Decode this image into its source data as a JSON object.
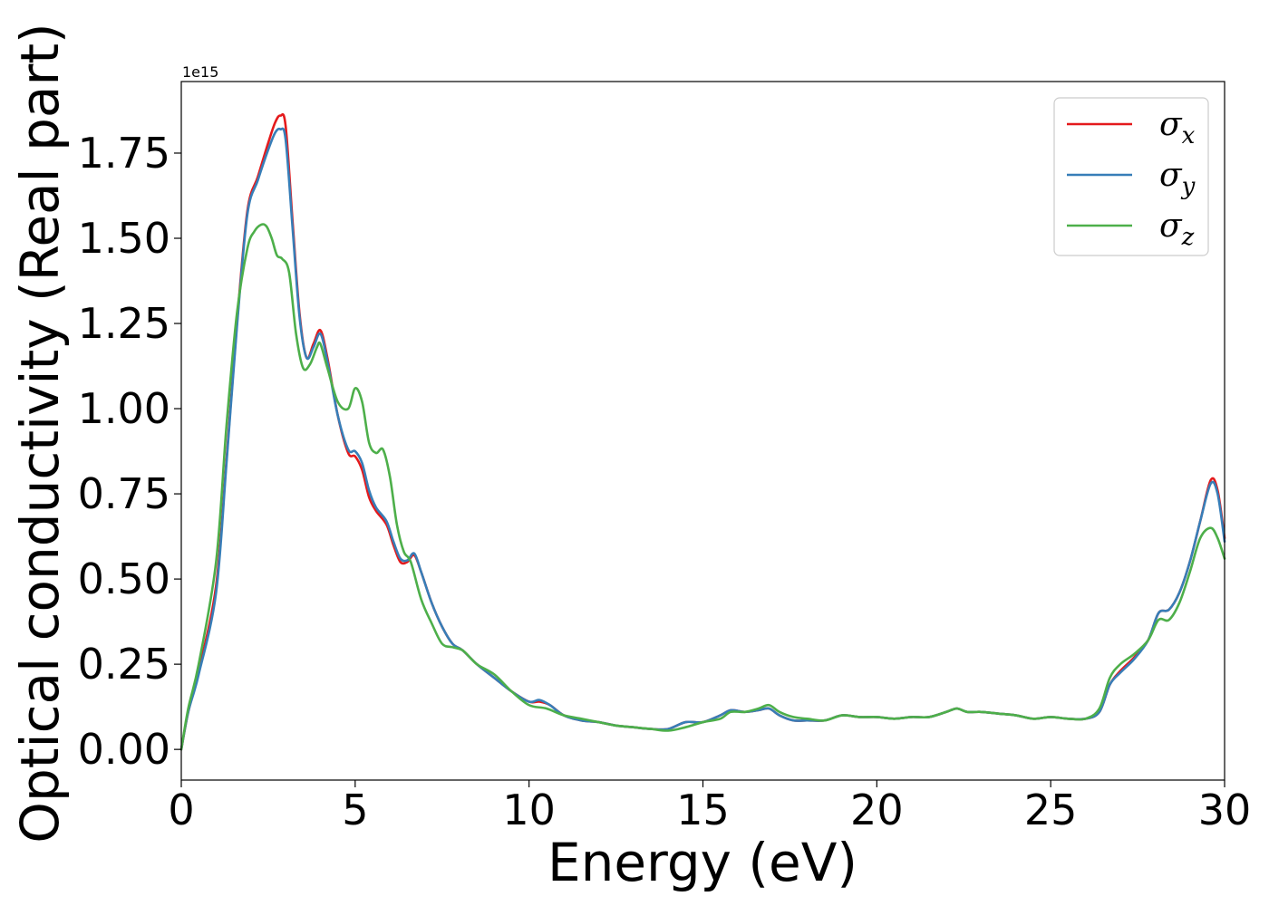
{
  "chart_data": {
    "type": "line",
    "xlabel": "Energy (eV)",
    "ylabel": "Optical conductivity (Real part)",
    "y_offset_label": "1e15",
    "xlim": [
      0,
      30
    ],
    "ylim": [
      -0.09,
      1.96
    ],
    "x_ticks": [
      0,
      5,
      10,
      15,
      20,
      25,
      30
    ],
    "x_tick_labels": [
      "0",
      "5",
      "10",
      "15",
      "20",
      "25",
      "30"
    ],
    "y_ticks": [
      0,
      0.25,
      0.5,
      0.75,
      1.0,
      1.25,
      1.5,
      1.75
    ],
    "y_tick_labels": [
      "0.00",
      "0.25",
      "0.50",
      "0.75",
      "1.00",
      "1.25",
      "1.50",
      "1.75"
    ],
    "grid": false,
    "legend_position": "top-right",
    "series": [
      {
        "name": "σx",
        "symbol": "σ",
        "subscript": "x",
        "color": "#e41a1c",
        "x": [
          0,
          0.2,
          0.5,
          1.0,
          1.3,
          1.6,
          1.9,
          2.2,
          2.5,
          2.7,
          2.85,
          3.0,
          3.2,
          3.4,
          3.6,
          3.8,
          4.0,
          4.2,
          4.5,
          4.8,
          5.0,
          5.2,
          5.4,
          5.6,
          5.9,
          6.1,
          6.3,
          6.5,
          6.7,
          6.9,
          7.2,
          7.5,
          7.8,
          8.1,
          8.5,
          9.0,
          9.5,
          10.0,
          10.3,
          10.6,
          11.0,
          11.5,
          12.0,
          12.5,
          13.0,
          13.5,
          14.0,
          14.5,
          15.0,
          15.5,
          15.8,
          16.2,
          16.6,
          16.9,
          17.2,
          17.6,
          18.0,
          18.5,
          19.0,
          19.5,
          20.0,
          20.5,
          21.0,
          21.5,
          22.0,
          22.3,
          22.6,
          23.0,
          23.5,
          24.0,
          24.5,
          25.0,
          25.5,
          26.0,
          26.4,
          26.7,
          27.0,
          27.4,
          27.8,
          28.1,
          28.4,
          28.7,
          29.0,
          29.3,
          29.6,
          29.8,
          30.0
        ],
        "y": [
          0,
          0.11,
          0.23,
          0.48,
          0.85,
          1.25,
          1.58,
          1.68,
          1.78,
          1.84,
          1.86,
          1.83,
          1.55,
          1.28,
          1.15,
          1.19,
          1.23,
          1.15,
          0.98,
          0.87,
          0.86,
          0.82,
          0.74,
          0.7,
          0.66,
          0.6,
          0.55,
          0.55,
          0.57,
          0.52,
          0.43,
          0.36,
          0.31,
          0.29,
          0.25,
          0.21,
          0.17,
          0.14,
          0.14,
          0.13,
          0.1,
          0.085,
          0.08,
          0.07,
          0.065,
          0.06,
          0.06,
          0.08,
          0.08,
          0.1,
          0.115,
          0.11,
          0.115,
          0.12,
          0.1,
          0.085,
          0.085,
          0.085,
          0.1,
          0.095,
          0.095,
          0.09,
          0.095,
          0.095,
          0.11,
          0.12,
          0.11,
          0.11,
          0.105,
          0.1,
          0.09,
          0.095,
          0.09,
          0.09,
          0.11,
          0.19,
          0.23,
          0.27,
          0.32,
          0.4,
          0.41,
          0.46,
          0.55,
          0.67,
          0.79,
          0.76,
          0.62
        ]
      },
      {
        "name": "σy",
        "symbol": "σ",
        "subscript": "y",
        "color": "#377eb8",
        "x": [
          0,
          0.2,
          0.5,
          1.0,
          1.3,
          1.6,
          1.9,
          2.2,
          2.5,
          2.7,
          2.85,
          3.0,
          3.2,
          3.4,
          3.6,
          3.8,
          4.0,
          4.2,
          4.5,
          4.8,
          5.0,
          5.2,
          5.4,
          5.6,
          5.9,
          6.1,
          6.3,
          6.5,
          6.7,
          6.9,
          7.2,
          7.5,
          7.8,
          8.1,
          8.5,
          9.0,
          9.5,
          10.0,
          10.3,
          10.6,
          11.0,
          11.5,
          12.0,
          12.5,
          13.0,
          13.5,
          14.0,
          14.5,
          15.0,
          15.5,
          15.8,
          16.2,
          16.6,
          16.9,
          17.2,
          17.6,
          18.0,
          18.5,
          19.0,
          19.5,
          20.0,
          20.5,
          21.0,
          21.5,
          22.0,
          22.3,
          22.6,
          23.0,
          23.5,
          24.0,
          24.5,
          25.0,
          25.5,
          26.0,
          26.4,
          26.7,
          27.0,
          27.4,
          27.8,
          28.1,
          28.4,
          28.7,
          29.0,
          29.3,
          29.6,
          29.8,
          30.0
        ],
        "y": [
          0,
          0.11,
          0.22,
          0.46,
          0.84,
          1.24,
          1.57,
          1.67,
          1.76,
          1.81,
          1.82,
          1.79,
          1.53,
          1.27,
          1.15,
          1.18,
          1.22,
          1.14,
          0.98,
          0.88,
          0.875,
          0.84,
          0.76,
          0.71,
          0.67,
          0.61,
          0.56,
          0.555,
          0.575,
          0.52,
          0.43,
          0.36,
          0.31,
          0.29,
          0.25,
          0.21,
          0.17,
          0.14,
          0.145,
          0.13,
          0.1,
          0.085,
          0.08,
          0.07,
          0.065,
          0.06,
          0.06,
          0.08,
          0.08,
          0.1,
          0.115,
          0.11,
          0.115,
          0.12,
          0.1,
          0.085,
          0.085,
          0.085,
          0.1,
          0.095,
          0.095,
          0.09,
          0.095,
          0.095,
          0.11,
          0.12,
          0.11,
          0.11,
          0.105,
          0.1,
          0.09,
          0.095,
          0.09,
          0.09,
          0.11,
          0.19,
          0.225,
          0.265,
          0.32,
          0.4,
          0.41,
          0.46,
          0.55,
          0.67,
          0.78,
          0.75,
          0.61
        ]
      },
      {
        "name": "σz",
        "symbol": "σ",
        "subscript": "z",
        "color": "#4daf4a",
        "x": [
          0,
          0.2,
          0.5,
          1.0,
          1.3,
          1.6,
          1.9,
          2.1,
          2.3,
          2.45,
          2.6,
          2.75,
          2.9,
          3.1,
          3.3,
          3.5,
          3.7,
          3.9,
          4.0,
          4.2,
          4.5,
          4.8,
          5.0,
          5.2,
          5.4,
          5.6,
          5.8,
          6.0,
          6.2,
          6.4,
          6.6,
          6.9,
          7.2,
          7.5,
          7.8,
          8.1,
          8.5,
          9.0,
          9.5,
          10.0,
          10.5,
          11.0,
          11.5,
          12.0,
          12.5,
          13.0,
          13.5,
          14.0,
          14.5,
          15.0,
          15.5,
          15.8,
          16.2,
          16.6,
          16.9,
          17.2,
          17.6,
          18.0,
          18.5,
          19.0,
          19.5,
          20.0,
          20.5,
          21.0,
          21.5,
          22.0,
          22.3,
          22.6,
          23.0,
          23.5,
          24.0,
          24.5,
          25.0,
          25.5,
          26.0,
          26.4,
          26.7,
          27.0,
          27.4,
          27.8,
          28.1,
          28.4,
          28.7,
          29.0,
          29.3,
          29.6,
          29.8,
          30.0
        ],
        "y": [
          0,
          0.12,
          0.25,
          0.55,
          0.95,
          1.28,
          1.47,
          1.52,
          1.54,
          1.535,
          1.5,
          1.45,
          1.44,
          1.4,
          1.22,
          1.12,
          1.13,
          1.18,
          1.19,
          1.12,
          1.02,
          1.0,
          1.06,
          1.02,
          0.9,
          0.87,
          0.88,
          0.8,
          0.66,
          0.58,
          0.55,
          0.44,
          0.37,
          0.31,
          0.3,
          0.29,
          0.25,
          0.22,
          0.17,
          0.13,
          0.12,
          0.1,
          0.09,
          0.08,
          0.07,
          0.065,
          0.06,
          0.055,
          0.065,
          0.08,
          0.09,
          0.11,
          0.11,
          0.12,
          0.13,
          0.11,
          0.095,
          0.09,
          0.085,
          0.1,
          0.095,
          0.095,
          0.09,
          0.095,
          0.095,
          0.11,
          0.12,
          0.11,
          0.11,
          0.105,
          0.1,
          0.09,
          0.095,
          0.09,
          0.09,
          0.12,
          0.21,
          0.25,
          0.28,
          0.32,
          0.38,
          0.38,
          0.43,
          0.52,
          0.62,
          0.65,
          0.62,
          0.56
        ]
      }
    ]
  }
}
